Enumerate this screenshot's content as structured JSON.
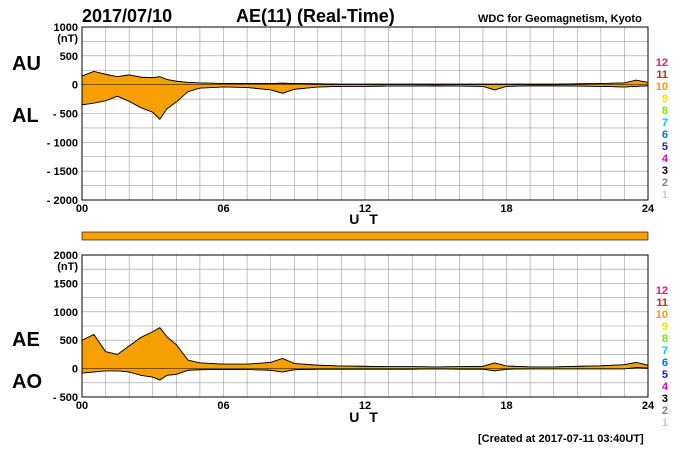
{
  "header": {
    "date": "2017/07/10",
    "index_title": "AE(11) (Real-Time)",
    "source": "WDC for Geomagnetism, Kyoto"
  },
  "footer": "[Created at 2017-07-11 03:40UT]",
  "chart_data": [
    {
      "type": "area",
      "panel": "AU/AL",
      "labels": {
        "upper": "AU",
        "lower": "AL",
        "unit": "(nT)",
        "xlabel": "U T"
      },
      "ylim": [
        -2000,
        1000
      ],
      "yticks": [
        "1000",
        "500",
        "0",
        "- 500",
        "- 1000",
        "- 1500",
        "- 2000"
      ],
      "ytick_values": [
        1000,
        500,
        0,
        -500,
        -1000,
        -1500,
        -2000
      ],
      "xlim": [
        0,
        24
      ],
      "xticks": [
        "00",
        "06",
        "12",
        "18",
        "24"
      ],
      "hours": [
        0,
        0.5,
        1,
        1.5,
        2,
        2.5,
        3,
        3.3,
        3.6,
        4,
        4.5,
        5,
        6,
        7,
        8,
        8.5,
        9,
        10,
        11,
        12,
        13,
        14,
        15,
        16,
        17,
        17.5,
        18,
        19,
        20,
        21,
        22,
        23,
        23.5,
        24
      ],
      "series": [
        {
          "name": "AU",
          "values": [
            150,
            230,
            180,
            140,
            170,
            130,
            120,
            140,
            90,
            60,
            40,
            30,
            20,
            20,
            20,
            25,
            20,
            15,
            10,
            10,
            10,
            10,
            10,
            10,
            10,
            10,
            10,
            10,
            10,
            15,
            20,
            30,
            80,
            40
          ]
        },
        {
          "name": "AL",
          "values": [
            -350,
            -320,
            -280,
            -200,
            -290,
            -400,
            -480,
            -600,
            -420,
            -300,
            -120,
            -60,
            -40,
            -50,
            -90,
            -150,
            -80,
            -40,
            -30,
            -30,
            -25,
            -25,
            -20,
            -25,
            -30,
            -90,
            -30,
            -20,
            -20,
            -25,
            -30,
            -40,
            -30,
            -20
          ]
        }
      ]
    },
    {
      "type": "area",
      "panel": "AE/AO",
      "labels": {
        "upper": "AE",
        "lower": "AO",
        "unit": "(nT)",
        "xlabel": "U T"
      },
      "ylim": [
        -500,
        2000
      ],
      "yticks": [
        "2000",
        "1500",
        "1000",
        "500",
        "0",
        "- 500"
      ],
      "ytick_values": [
        2000,
        1500,
        1000,
        500,
        0,
        -500
      ],
      "xlim": [
        0,
        24
      ],
      "xticks": [
        "00",
        "06",
        "12",
        "18",
        "24"
      ],
      "hours": [
        0,
        0.5,
        1,
        1.5,
        2,
        2.5,
        3,
        3.3,
        3.6,
        4,
        4.5,
        5,
        6,
        7,
        8,
        8.5,
        9,
        10,
        11,
        12,
        13,
        14,
        15,
        16,
        17,
        17.5,
        18,
        19,
        20,
        21,
        22,
        23,
        23.5,
        24
      ],
      "series": [
        {
          "name": "AE",
          "values": [
            500,
            600,
            300,
            250,
            400,
            550,
            650,
            720,
            560,
            420,
            150,
            100,
            80,
            80,
            110,
            180,
            90,
            60,
            45,
            40,
            35,
            35,
            30,
            35,
            40,
            100,
            45,
            30,
            30,
            40,
            50,
            70,
            110,
            60
          ]
        },
        {
          "name": "AO",
          "values": [
            -80,
            -60,
            -40,
            -40,
            -60,
            -120,
            -150,
            -200,
            -120,
            -100,
            -30,
            -20,
            -15,
            -15,
            -30,
            -60,
            -20,
            -10,
            -10,
            -10,
            -10,
            -10,
            -5,
            -10,
            -10,
            -40,
            -10,
            -5,
            -5,
            -5,
            -5,
            -5,
            20,
            10
          ]
        }
      ]
    }
  ],
  "status_bar": {
    "state": "all data available",
    "fraction": 1.0
  },
  "stations": [
    {
      "label": "12",
      "color": "#e8186e"
    },
    {
      "label": "11",
      "color": "#e8180c"
    },
    {
      "label": "10",
      "color": "#f59c00"
    },
    {
      "label": "9",
      "color": "#e8e800"
    },
    {
      "label": "8",
      "color": "#78e800"
    },
    {
      "label": "7",
      "color": "#00d0d8"
    },
    {
      "label": "6",
      "color": "#0070e8"
    },
    {
      "label": "5",
      "color": "#2020c0"
    },
    {
      "label": "4",
      "color": "#d000d0"
    },
    {
      "label": "3",
      "color": "#000000"
    },
    {
      "label": "2",
      "color": "#808080"
    },
    {
      "label": "1",
      "color": "#c8c8c8"
    }
  ],
  "colors": {
    "fill": "#f5a000",
    "grid": "#9a9a9a"
  }
}
